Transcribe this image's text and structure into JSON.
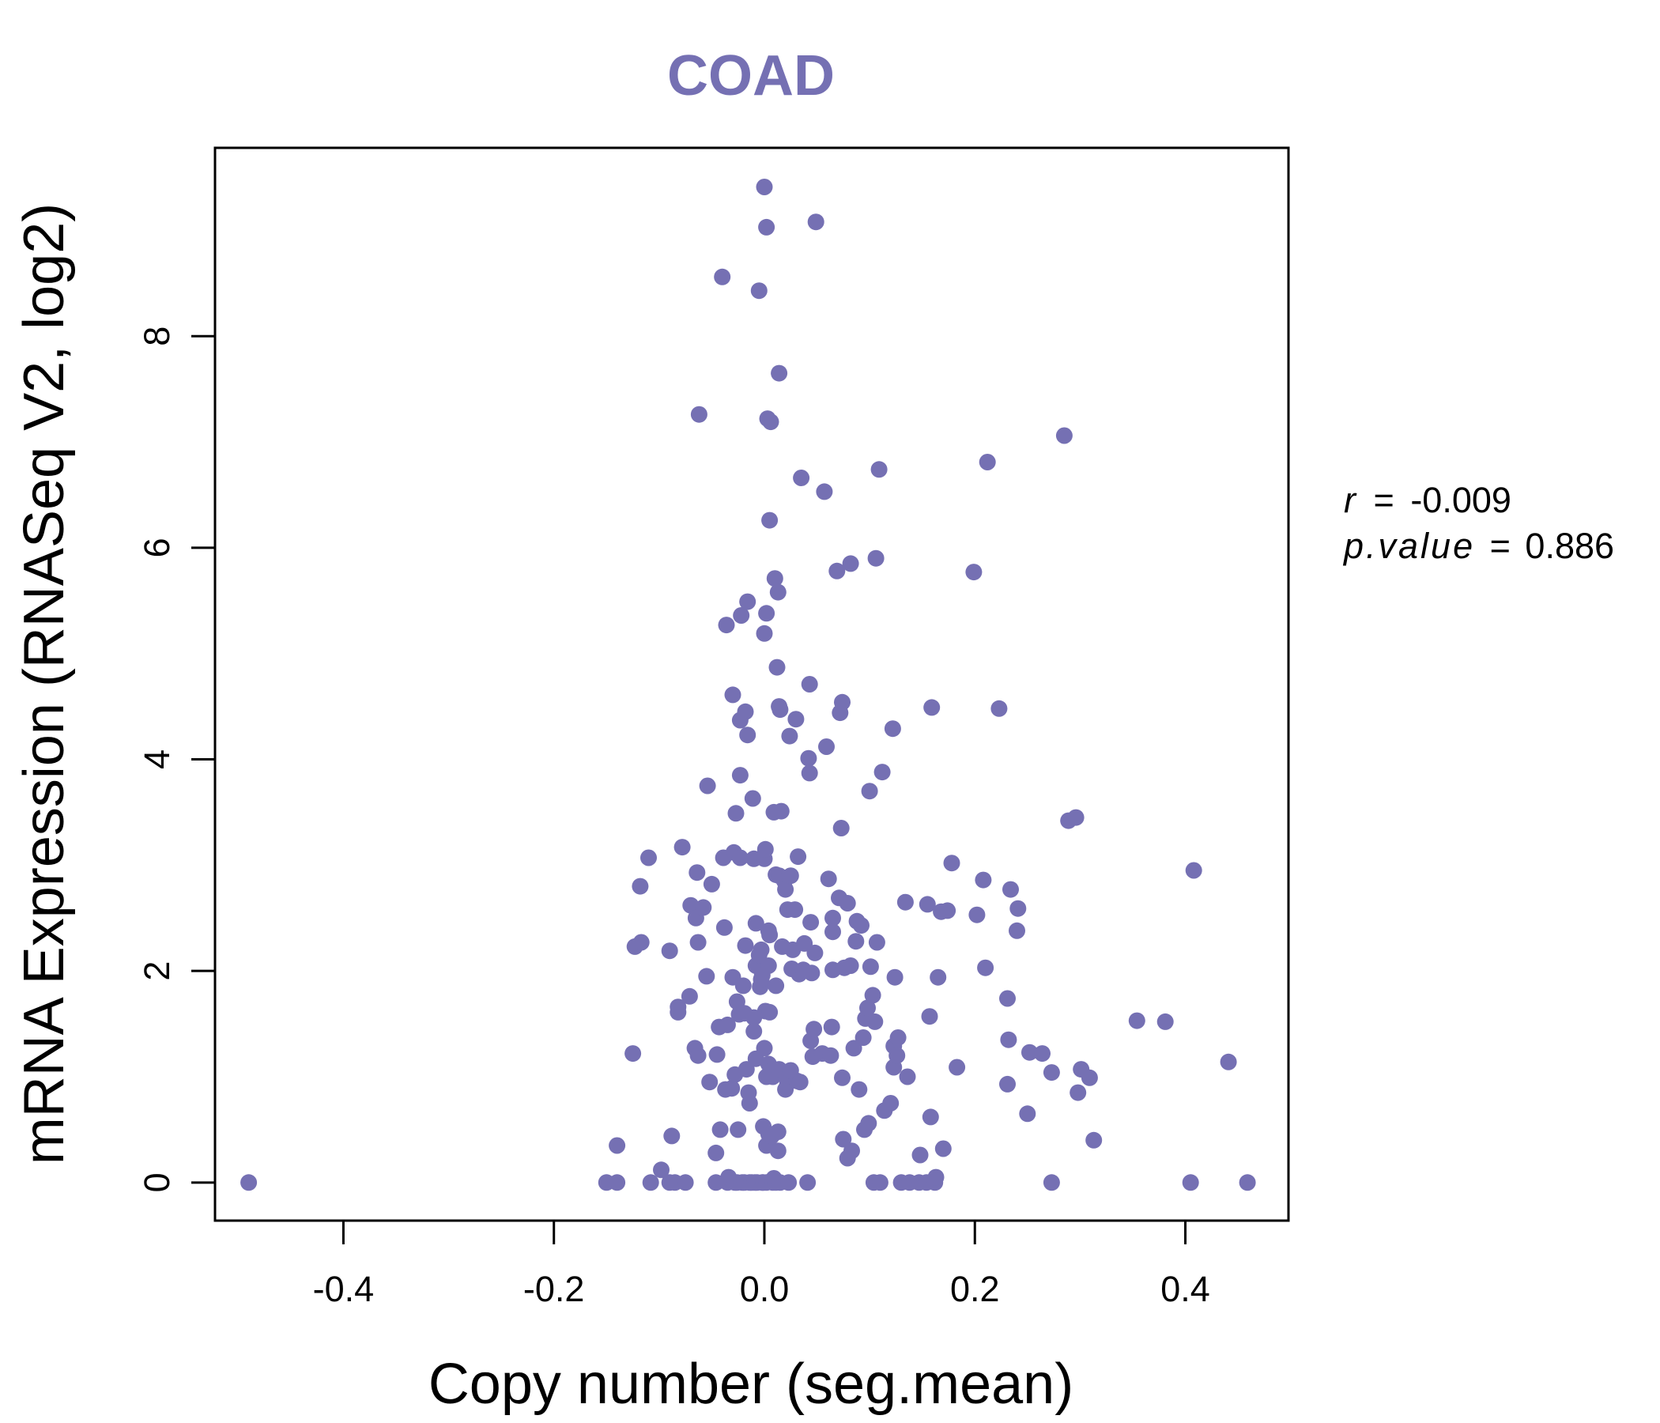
{
  "colors": {
    "accent": "#7570b3",
    "axis": "#000000",
    "background": "#ffffff"
  },
  "chart_data": {
    "type": "scatter",
    "title": "COAD",
    "xlabel": "Copy number (seg.mean)",
    "ylabel": "mRNA Expression (RNASeq V2, log2)",
    "xlim": [
      -0.522,
      0.498
    ],
    "ylim": [
      -0.36,
      9.78
    ],
    "xticks": [
      -0.4,
      -0.2,
      0.0,
      0.2,
      0.4
    ],
    "xtick_labels": [
      "-0.4",
      "-0.2",
      "0.0",
      "0.2",
      "0.4"
    ],
    "yticks": [
      0,
      2,
      4,
      6,
      8
    ],
    "ytick_labels": [
      "0",
      "2",
      "4",
      "6",
      "8"
    ],
    "grid": false,
    "stats": {
      "r_symbol": "r",
      "eq": "=",
      "r_value": "-0.009",
      "p_symbol": "p.value",
      "p_value": "0.886"
    },
    "points": [
      [
        -0.49,
        0.0
      ],
      [
        -0.15,
        0.0
      ],
      [
        -0.14,
        0.0
      ],
      [
        -0.14,
        0.35
      ],
      [
        -0.125,
        1.22
      ],
      [
        -0.123,
        2.23
      ],
      [
        -0.118,
        2.8
      ],
      [
        -0.117,
        2.27
      ],
      [
        -0.11,
        3.07
      ],
      [
        -0.108,
        0.0
      ],
      [
        -0.098,
        0.12
      ],
      [
        -0.09,
        0.0
      ],
      [
        -0.09,
        2.19
      ],
      [
        -0.088,
        0.44
      ],
      [
        -0.085,
        0.0
      ],
      [
        -0.082,
        1.61
      ],
      [
        -0.082,
        1.66
      ],
      [
        -0.078,
        3.17
      ],
      [
        -0.075,
        0.0
      ],
      [
        -0.071,
        1.76
      ],
      [
        -0.07,
        2.62
      ],
      [
        -0.066,
        1.27
      ],
      [
        -0.065,
        2.5
      ],
      [
        -0.064,
        2.93
      ],
      [
        -0.063,
        2.27
      ],
      [
        -0.063,
        1.2
      ],
      [
        -0.062,
        7.26
      ],
      [
        -0.058,
        2.6
      ],
      [
        -0.055,
        1.95
      ],
      [
        -0.054,
        3.75
      ],
      [
        -0.052,
        0.95
      ],
      [
        -0.05,
        2.82
      ],
      [
        -0.046,
        0.28
      ],
      [
        -0.046,
        0.0
      ],
      [
        -0.045,
        1.21
      ],
      [
        -0.043,
        1.47
      ],
      [
        -0.042,
        0.5
      ],
      [
        -0.04,
        8.56
      ],
      [
        -0.039,
        3.07
      ],
      [
        -0.038,
        2.41
      ],
      [
        -0.037,
        0.88
      ],
      [
        -0.036,
        5.27
      ],
      [
        -0.035,
        0.0
      ],
      [
        -0.035,
        1.49
      ],
      [
        -0.034,
        0.05
      ],
      [
        -0.031,
        0.89
      ],
      [
        -0.03,
        4.61
      ],
      [
        -0.03,
        1.94
      ],
      [
        -0.029,
        3.12
      ],
      [
        -0.028,
        1.02
      ],
      [
        -0.028,
        0.0
      ],
      [
        -0.027,
        3.49
      ],
      [
        -0.026,
        0.0
      ],
      [
        -0.026,
        1.71
      ],
      [
        -0.025,
        0.5
      ],
      [
        -0.024,
        1.59
      ],
      [
        -0.023,
        3.07
      ],
      [
        -0.023,
        4.37
      ],
      [
        -0.023,
        3.85
      ],
      [
        -0.022,
        5.36
      ],
      [
        -0.021,
        0.0
      ],
      [
        -0.02,
        1.86
      ],
      [
        -0.019,
        1.6
      ],
      [
        -0.019,
        0.0
      ],
      [
        -0.018,
        4.45
      ],
      [
        -0.018,
        2.24
      ],
      [
        -0.017,
        1.07
      ],
      [
        -0.016,
        5.49
      ],
      [
        -0.016,
        4.23
      ],
      [
        -0.015,
        0.85
      ],
      [
        -0.014,
        0.0
      ],
      [
        -0.014,
        0.75
      ],
      [
        -0.012,
        0.0
      ],
      [
        -0.011,
        3.63
      ],
      [
        -0.01,
        1.56
      ],
      [
        -0.01,
        1.43
      ],
      [
        -0.01,
        3.06
      ],
      [
        -0.009,
        0.0
      ],
      [
        -0.008,
        1.17
      ],
      [
        -0.008,
        2.45
      ],
      [
        -0.008,
        2.05
      ],
      [
        -0.007,
        0.0
      ],
      [
        -0.005,
        2.15
      ],
      [
        -0.005,
        8.43
      ],
      [
        -0.004,
        1.85
      ],
      [
        -0.003,
        2.2
      ],
      [
        -0.003,
        1.92
      ],
      [
        -0.002,
        0.0
      ],
      [
        -0.002,
        1.96
      ],
      [
        -0.001,
        0.0
      ],
      [
        -0.001,
        0.53
      ],
      [
        0.0,
        5.19
      ],
      [
        0.0,
        9.41
      ],
      [
        0.0,
        3.06
      ],
      [
        0.0,
        1.27
      ],
      [
        0.001,
        3.15
      ],
      [
        0.001,
        1.62
      ],
      [
        0.002,
        0.35
      ],
      [
        0.002,
        1.0
      ],
      [
        0.002,
        9.03
      ],
      [
        0.002,
        0.0
      ],
      [
        0.002,
        5.38
      ],
      [
        0.003,
        7.22
      ],
      [
        0.004,
        2.05
      ],
      [
        0.004,
        0.46
      ],
      [
        0.004,
        1.12
      ],
      [
        0.004,
        2.38
      ],
      [
        0.005,
        1.61
      ],
      [
        0.005,
        2.34
      ],
      [
        0.005,
        6.26
      ],
      [
        0.006,
        7.19
      ],
      [
        0.006,
        1.05
      ],
      [
        0.007,
        0.44
      ],
      [
        0.008,
        0.0
      ],
      [
        0.008,
        1.0
      ],
      [
        0.009,
        3.5
      ],
      [
        0.009,
        0.04
      ],
      [
        0.01,
        5.71
      ],
      [
        0.011,
        1.86
      ],
      [
        0.011,
        2.91
      ],
      [
        0.011,
        0.0
      ],
      [
        0.012,
        4.87
      ],
      [
        0.013,
        5.58
      ],
      [
        0.013,
        0.3
      ],
      [
        0.013,
        0.48
      ],
      [
        0.014,
        1.07
      ],
      [
        0.014,
        2.9
      ],
      [
        0.014,
        7.65
      ],
      [
        0.014,
        4.5
      ],
      [
        0.015,
        0.0
      ],
      [
        0.015,
        4.47
      ],
      [
        0.016,
        3.51
      ],
      [
        0.017,
        2.23
      ],
      [
        0.019,
        2.85
      ],
      [
        0.02,
        1.03
      ],
      [
        0.02,
        0.88
      ],
      [
        0.02,
        2.77
      ],
      [
        0.022,
        2.58
      ],
      [
        0.022,
        0.94
      ],
      [
        0.023,
        0.0
      ],
      [
        0.024,
        4.22
      ],
      [
        0.025,
        2.9
      ],
      [
        0.025,
        1.06
      ],
      [
        0.026,
        2.02
      ],
      [
        0.027,
        2.2
      ],
      [
        0.029,
        2.58
      ],
      [
        0.03,
        4.38
      ],
      [
        0.031,
        0.96
      ],
      [
        0.032,
        3.08
      ],
      [
        0.033,
        1.97
      ],
      [
        0.034,
        0.95
      ],
      [
        0.035,
        6.66
      ],
      [
        0.037,
        2.01
      ],
      [
        0.038,
        2.26
      ],
      [
        0.041,
        0.0
      ],
      [
        0.042,
        4.01
      ],
      [
        0.043,
        3.87
      ],
      [
        0.043,
        4.71
      ],
      [
        0.044,
        1.34
      ],
      [
        0.044,
        2.46
      ],
      [
        0.045,
        1.98
      ],
      [
        0.046,
        1.19
      ],
      [
        0.047,
        1.45
      ],
      [
        0.048,
        2.17
      ],
      [
        0.049,
        9.08
      ],
      [
        0.055,
        1.22
      ],
      [
        0.057,
        6.53
      ],
      [
        0.059,
        4.12
      ],
      [
        0.061,
        2.87
      ],
      [
        0.063,
        1.2
      ],
      [
        0.064,
        1.47
      ],
      [
        0.065,
        2.01
      ],
      [
        0.065,
        2.5
      ],
      [
        0.065,
        2.37
      ],
      [
        0.069,
        5.78
      ],
      [
        0.071,
        2.69
      ],
      [
        0.072,
        4.44
      ],
      [
        0.073,
        3.35
      ],
      [
        0.074,
        0.99
      ],
      [
        0.074,
        4.54
      ],
      [
        0.075,
        0.41
      ],
      [
        0.076,
        2.03
      ],
      [
        0.079,
        0.23
      ],
      [
        0.079,
        2.64
      ],
      [
        0.082,
        5.85
      ],
      [
        0.082,
        2.05
      ],
      [
        0.083,
        0.3
      ],
      [
        0.085,
        1.27
      ],
      [
        0.087,
        2.28
      ],
      [
        0.088,
        2.47
      ],
      [
        0.09,
        0.88
      ],
      [
        0.092,
        2.43
      ],
      [
        0.094,
        1.37
      ],
      [
        0.095,
        0.5
      ],
      [
        0.096,
        1.55
      ],
      [
        0.098,
        1.65
      ],
      [
        0.099,
        0.56
      ],
      [
        0.1,
        3.7
      ],
      [
        0.101,
        2.04
      ],
      [
        0.103,
        1.77
      ],
      [
        0.104,
        0.0
      ],
      [
        0.105,
        1.52
      ],
      [
        0.106,
        5.9
      ],
      [
        0.107,
        2.27
      ],
      [
        0.109,
        6.74
      ],
      [
        0.11,
        0.0
      ],
      [
        0.112,
        3.88
      ],
      [
        0.114,
        0.68
      ],
      [
        0.12,
        0.75
      ],
      [
        0.122,
        4.29
      ],
      [
        0.123,
        1.29
      ],
      [
        0.123,
        1.09
      ],
      [
        0.124,
        1.94
      ],
      [
        0.126,
        1.2
      ],
      [
        0.127,
        1.37
      ],
      [
        0.13,
        0.0
      ],
      [
        0.134,
        2.65
      ],
      [
        0.136,
        1.0
      ],
      [
        0.138,
        0.0
      ],
      [
        0.147,
        0.0
      ],
      [
        0.148,
        0.26
      ],
      [
        0.154,
        0.0
      ],
      [
        0.155,
        2.63
      ],
      [
        0.157,
        1.57
      ],
      [
        0.158,
        0.62
      ],
      [
        0.159,
        4.49
      ],
      [
        0.162,
        0.0
      ],
      [
        0.163,
        0.05
      ],
      [
        0.165,
        1.94
      ],
      [
        0.168,
        2.56
      ],
      [
        0.17,
        0.32
      ],
      [
        0.174,
        2.57
      ],
      [
        0.178,
        3.02
      ],
      [
        0.183,
        1.09
      ],
      [
        0.199,
        5.77
      ],
      [
        0.202,
        2.53
      ],
      [
        0.208,
        2.86
      ],
      [
        0.21,
        2.03
      ],
      [
        0.212,
        6.81
      ],
      [
        0.223,
        4.48
      ],
      [
        0.231,
        1.74
      ],
      [
        0.231,
        0.93
      ],
      [
        0.232,
        1.35
      ],
      [
        0.234,
        2.77
      ],
      [
        0.24,
        2.38
      ],
      [
        0.241,
        2.59
      ],
      [
        0.25,
        0.65
      ],
      [
        0.252,
        1.23
      ],
      [
        0.264,
        1.22
      ],
      [
        0.273,
        1.04
      ],
      [
        0.273,
        0.0
      ],
      [
        0.285,
        7.06
      ],
      [
        0.289,
        3.42
      ],
      [
        0.296,
        3.45
      ],
      [
        0.298,
        0.85
      ],
      [
        0.301,
        1.07
      ],
      [
        0.309,
        0.99
      ],
      [
        0.313,
        0.4
      ],
      [
        0.354,
        1.53
      ],
      [
        0.381,
        1.52
      ],
      [
        0.405,
        0.0
      ],
      [
        0.408,
        2.95
      ],
      [
        0.441,
        1.14
      ],
      [
        0.459,
        0.0
      ]
    ]
  }
}
